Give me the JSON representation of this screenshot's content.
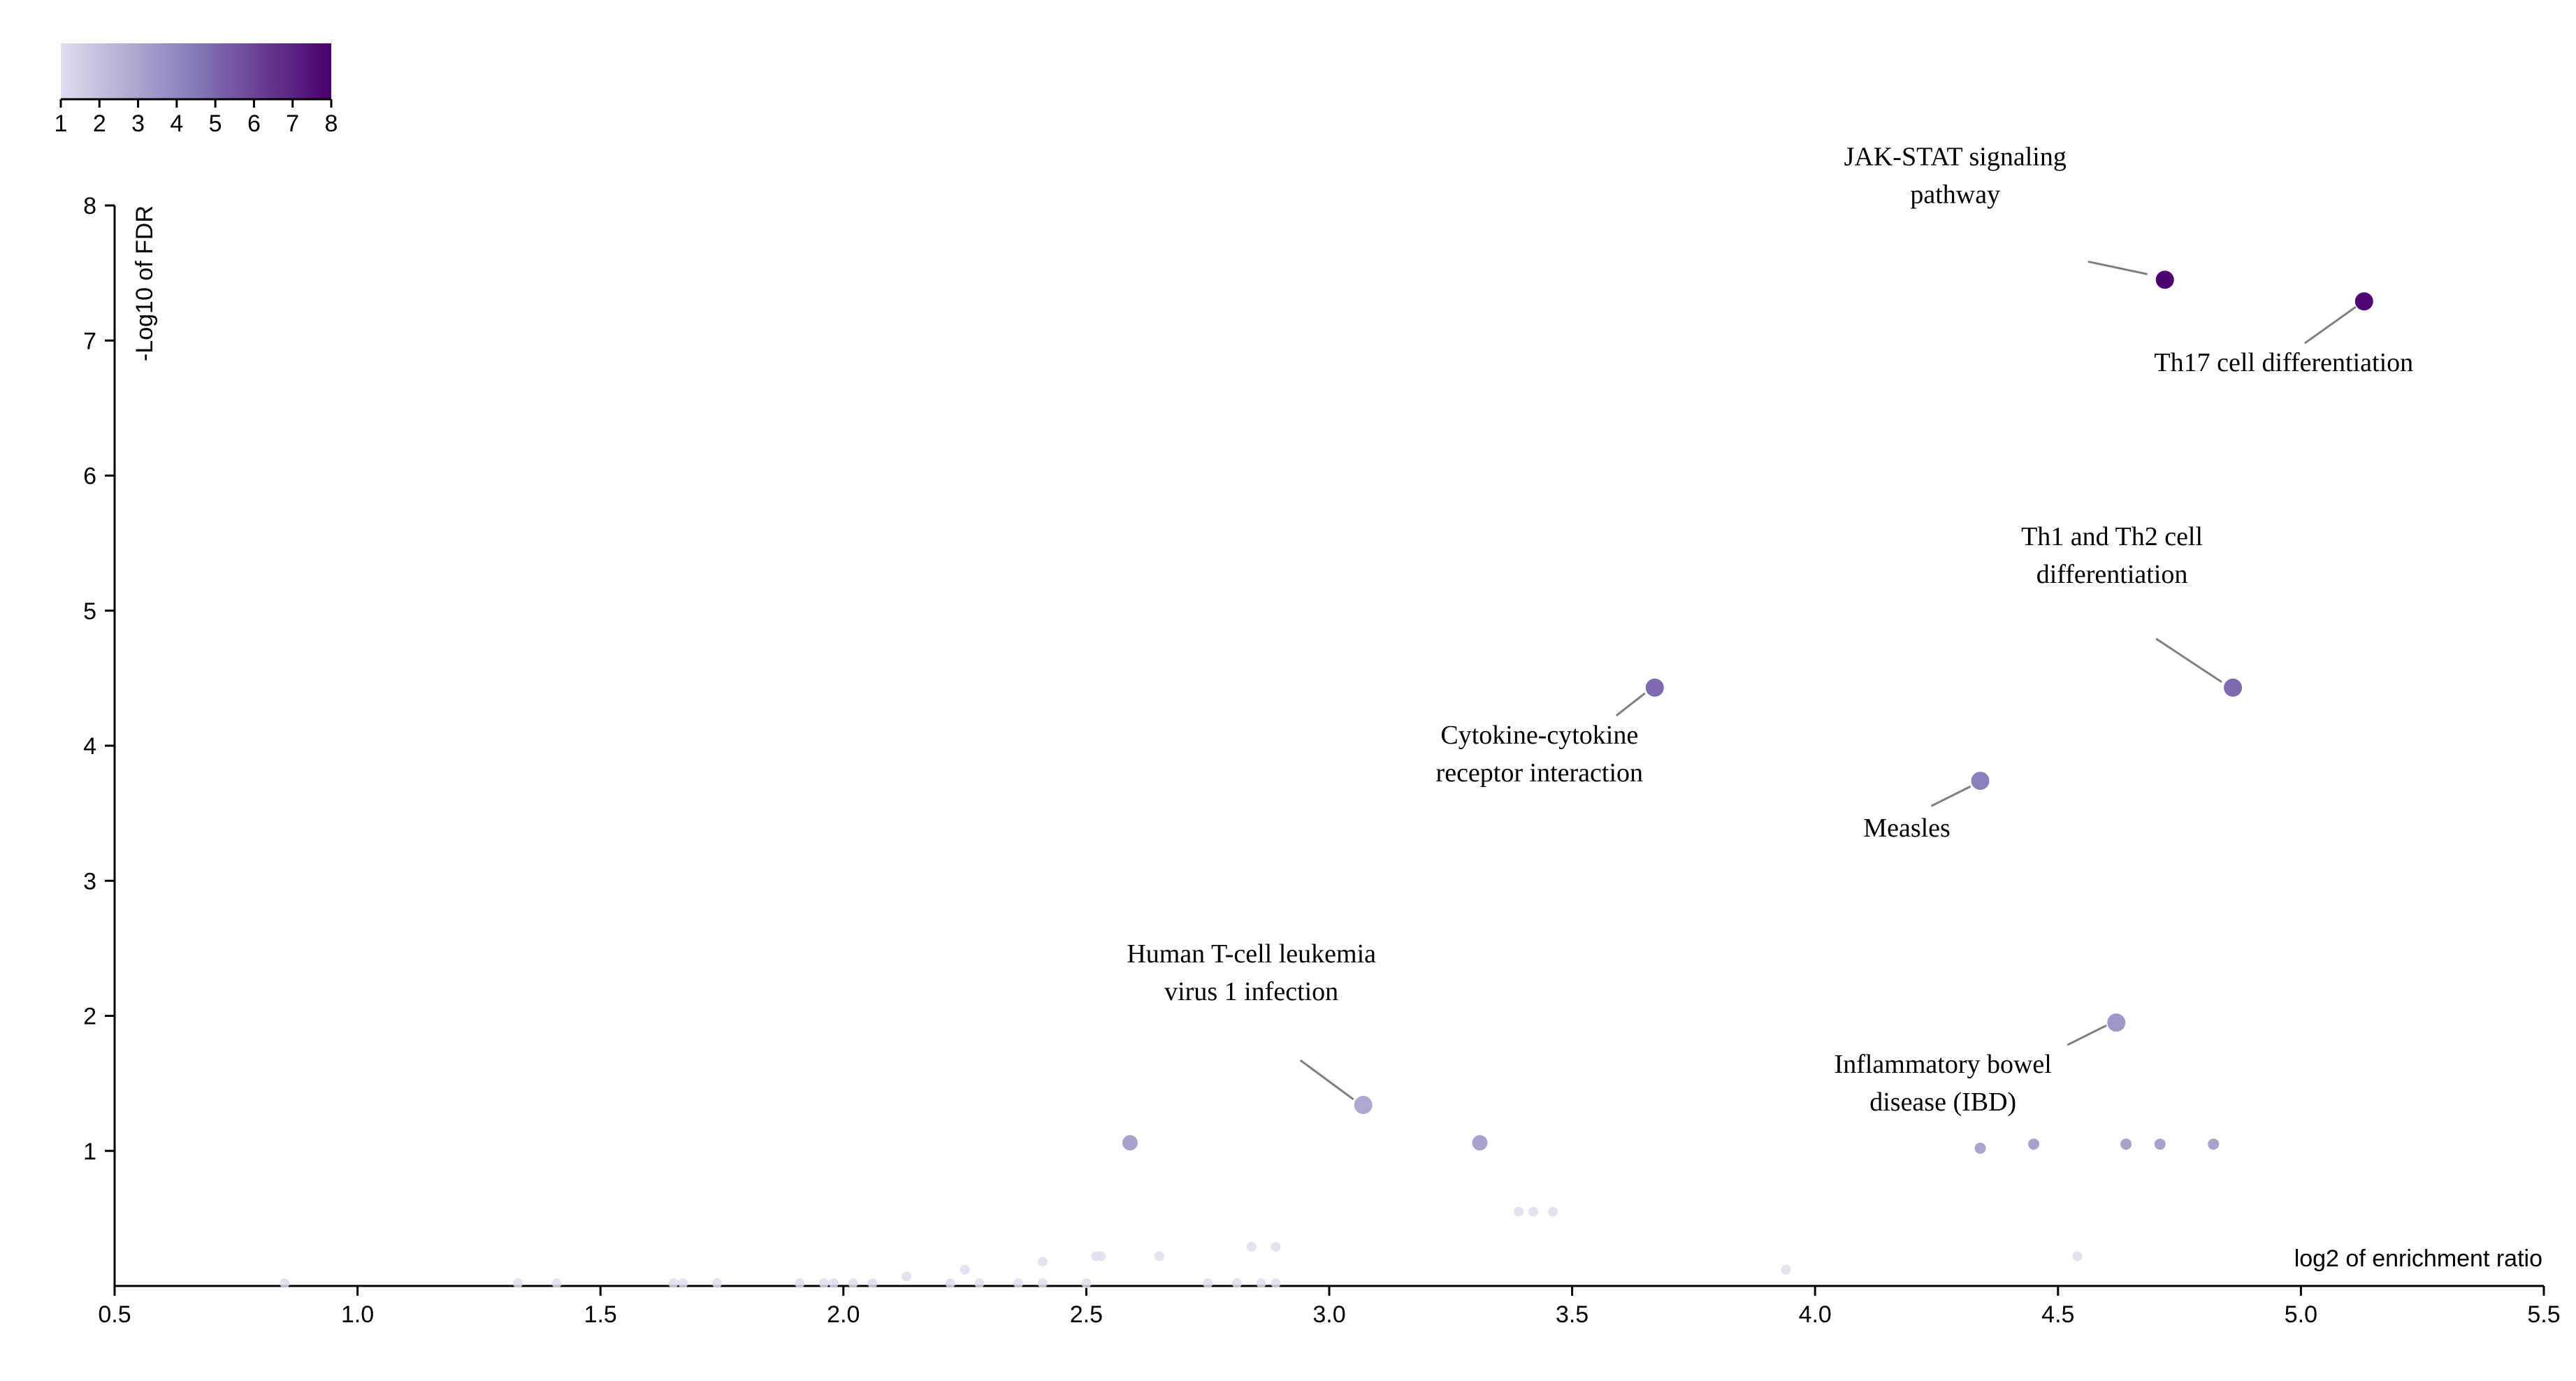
{
  "chart_data": {
    "type": "scatter",
    "title": "",
    "xlabel": "log2 of enrichment ratio",
    "ylabel": "-Log10 of FDR",
    "xlim": [
      0.5,
      5.5
    ],
    "ylim": [
      0,
      8
    ],
    "x_ticks": [
      "0.5",
      "1.0",
      "1.5",
      "2.0",
      "2.5",
      "3.0",
      "3.5",
      "4.0",
      "4.5",
      "5.0",
      "5.5"
    ],
    "y_ticks": [
      "1",
      "2",
      "3",
      "4",
      "5",
      "6",
      "7",
      "8"
    ],
    "grid": false,
    "color_scale": {
      "variable": "-Log10 of FDR",
      "min": 1,
      "max": 8,
      "ticks": [
        "1",
        "2",
        "3",
        "4",
        "5",
        "6",
        "7",
        "8"
      ],
      "low_color": "#dedded",
      "high_color": "#4b006e",
      "placement": "top-left"
    },
    "labeled_points": [
      {
        "label_lines": [
          "JAK-STAT signaling",
          "pathway"
        ],
        "x": 4.72,
        "y": 7.45
      },
      {
        "label_lines": [
          "Th17 cell differentiation"
        ],
        "x": 5.13,
        "y": 7.29
      },
      {
        "label_lines": [
          "Th1 and Th2 cell",
          "differentiation"
        ],
        "x": 4.86,
        "y": 4.43
      },
      {
        "label_lines": [
          "Cytokine-cytokine",
          "receptor interaction"
        ],
        "x": 3.67,
        "y": 4.43
      },
      {
        "label_lines": [
          "Measles"
        ],
        "x": 4.34,
        "y": 3.74
      },
      {
        "label_lines": [
          "Inflammatory bowel",
          "disease (IBD)"
        ],
        "x": 4.62,
        "y": 1.95
      },
      {
        "label_lines": [
          "Human T-cell leukemia",
          "virus 1 infection"
        ],
        "x": 3.07,
        "y": 1.34
      }
    ],
    "points": [
      {
        "x": 2.59,
        "y": 1.06
      },
      {
        "x": 3.31,
        "y": 1.06
      },
      {
        "x": 4.34,
        "y": 1.02
      },
      {
        "x": 4.45,
        "y": 1.05
      },
      {
        "x": 4.64,
        "y": 1.05
      },
      {
        "x": 4.71,
        "y": 1.05
      },
      {
        "x": 4.82,
        "y": 1.05
      },
      {
        "x": 3.39,
        "y": 0.55
      },
      {
        "x": 3.42,
        "y": 0.55
      },
      {
        "x": 3.46,
        "y": 0.55
      },
      {
        "x": 2.84,
        "y": 0.29
      },
      {
        "x": 2.89,
        "y": 0.29
      },
      {
        "x": 2.52,
        "y": 0.22
      },
      {
        "x": 2.53,
        "y": 0.22
      },
      {
        "x": 2.65,
        "y": 0.22
      },
      {
        "x": 4.54,
        "y": 0.22
      },
      {
        "x": 2.41,
        "y": 0.18
      },
      {
        "x": 2.25,
        "y": 0.12
      },
      {
        "x": 3.94,
        "y": 0.12
      },
      {
        "x": 2.13,
        "y": 0.07
      },
      {
        "x": 0.85,
        "y": 0.02
      },
      {
        "x": 1.33,
        "y": 0.02
      },
      {
        "x": 1.41,
        "y": 0.02
      },
      {
        "x": 1.65,
        "y": 0.02
      },
      {
        "x": 1.67,
        "y": 0.02
      },
      {
        "x": 1.74,
        "y": 0.02
      },
      {
        "x": 1.91,
        "y": 0.02
      },
      {
        "x": 1.96,
        "y": 0.02
      },
      {
        "x": 1.98,
        "y": 0.02
      },
      {
        "x": 2.02,
        "y": 0.02
      },
      {
        "x": 2.06,
        "y": 0.02
      },
      {
        "x": 2.22,
        "y": 0.02
      },
      {
        "x": 2.28,
        "y": 0.02
      },
      {
        "x": 2.36,
        "y": 0.02
      },
      {
        "x": 2.41,
        "y": 0.02
      },
      {
        "x": 2.5,
        "y": 0.02
      },
      {
        "x": 2.75,
        "y": 0.02
      },
      {
        "x": 2.81,
        "y": 0.02
      },
      {
        "x": 2.86,
        "y": 0.02
      },
      {
        "x": 2.89,
        "y": 0.02
      }
    ]
  }
}
